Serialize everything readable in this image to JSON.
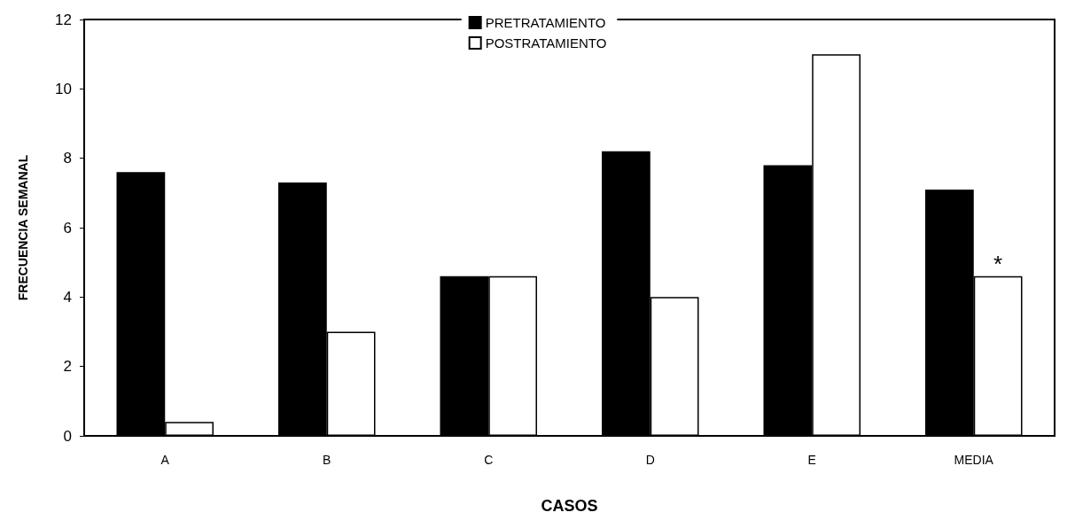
{
  "chart_data": {
    "type": "bar",
    "xlabel": "CASOS",
    "ylabel": "FRECUENCIA SEMANAL",
    "categories": [
      "A",
      "B",
      "C",
      "D",
      "E",
      "MEDIA"
    ],
    "series": [
      {
        "name": "PRETRATAMIENTO",
        "color": "#000000",
        "values": [
          7.6,
          7.3,
          4.6,
          8.2,
          7.8,
          7.1
        ]
      },
      {
        "name": "POSTRATAMIENTO",
        "color": "#ffffff",
        "values": [
          0.4,
          3.0,
          4.6,
          4.0,
          11.0,
          4.6
        ]
      }
    ],
    "ylim": [
      0,
      12
    ],
    "yticks": [
      0,
      2,
      4,
      6,
      8,
      10,
      12
    ],
    "grid": false,
    "legend": "top",
    "annotations": [
      {
        "text": "*",
        "x": "MEDIA",
        "y": 4.6
      }
    ]
  }
}
